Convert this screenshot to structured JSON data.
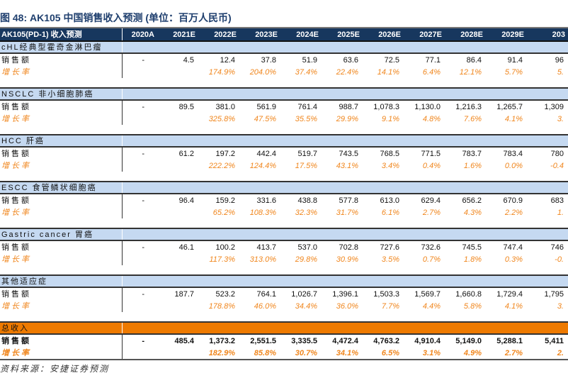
{
  "title": "图 48: AK105 中国销售收入预测 (单位：百万人民币)",
  "header": {
    "label": "AK105(PD-1) 收入预测",
    "years": [
      "2020A",
      "2021E",
      "2022E",
      "2023E",
      "2024E",
      "2025E",
      "2026E",
      "2027E",
      "2028E",
      "2029E",
      "203"
    ]
  },
  "sales_label": "销售额",
  "growth_label": "增长率",
  "sections": [
    {
      "name": "cHL经典型霍奇金淋巴瘤",
      "sales": [
        "-",
        "4.5",
        "12.4",
        "37.8",
        "51.9",
        "63.6",
        "72.5",
        "77.1",
        "86.4",
        "91.4",
        "96"
      ],
      "growth": [
        "",
        "",
        "174.9%",
        "204.0%",
        "37.4%",
        "22.4%",
        "14.1%",
        "6.4%",
        "12.1%",
        "5.7%",
        "5."
      ]
    },
    {
      "name": "NSCLC 非小细胞肺癌",
      "sales": [
        "-",
        "89.5",
        "381.0",
        "561.9",
        "761.4",
        "988.7",
        "1,078.3",
        "1,130.0",
        "1,216.3",
        "1,265.7",
        "1,309"
      ],
      "growth": [
        "",
        "",
        "325.8%",
        "47.5%",
        "35.5%",
        "29.9%",
        "9.1%",
        "4.8%",
        "7.6%",
        "4.1%",
        "3."
      ]
    },
    {
      "name": "HCC 肝癌",
      "sales": [
        "-",
        "61.2",
        "197.2",
        "442.4",
        "519.7",
        "743.5",
        "768.5",
        "771.5",
        "783.7",
        "783.4",
        "780"
      ],
      "growth": [
        "",
        "",
        "222.2%",
        "124.4%",
        "17.5%",
        "43.1%",
        "3.4%",
        "0.4%",
        "1.6%",
        "0.0%",
        "-0.4"
      ]
    },
    {
      "name": "ESCC 食管鳞状细胞癌",
      "sales": [
        "-",
        "96.4",
        "159.2",
        "331.6",
        "438.8",
        "577.8",
        "613.0",
        "629.4",
        "656.2",
        "670.9",
        "683"
      ],
      "growth": [
        "",
        "",
        "65.2%",
        "108.3%",
        "32.3%",
        "31.7%",
        "6.1%",
        "2.7%",
        "4.3%",
        "2.2%",
        "1."
      ]
    },
    {
      "name": "Gastric cancer 胃癌",
      "sales": [
        "-",
        "46.1",
        "100.2",
        "413.7",
        "537.0",
        "702.8",
        "727.6",
        "732.6",
        "745.5",
        "747.4",
        "746"
      ],
      "growth": [
        "",
        "",
        "117.3%",
        "313.0%",
        "29.8%",
        "30.9%",
        "3.5%",
        "0.7%",
        "1.8%",
        "0.3%",
        "-0."
      ]
    },
    {
      "name": "其他适应症",
      "sales": [
        "-",
        "187.7",
        "523.2",
        "764.1",
        "1,026.7",
        "1,396.1",
        "1,503.3",
        "1,569.7",
        "1,660.8",
        "1,729.4",
        "1,795"
      ],
      "growth": [
        "",
        "",
        "178.8%",
        "46.0%",
        "34.4%",
        "36.0%",
        "7.7%",
        "4.4%",
        "5.8%",
        "4.1%",
        "3."
      ]
    }
  ],
  "total": {
    "name": "总收入",
    "sales": [
      "-",
      "485.4",
      "1,373.2",
      "2,551.5",
      "3,335.5",
      "4,472.4",
      "4,763.2",
      "4,910.4",
      "5,149.0",
      "5,288.1",
      "5,411"
    ],
    "growth": [
      "",
      "",
      "182.9%",
      "85.8%",
      "30.7%",
      "34.1%",
      "6.5%",
      "3.1%",
      "4.9%",
      "2.7%",
      "2."
    ]
  },
  "source": "资料来源：安捷证券预测",
  "colors": {
    "header_bg": "#17375e",
    "section_bg": "#c5d9f1",
    "total_bg": "#ee7a00",
    "growth_text": "#f0861d",
    "title": "#1f3f6e"
  }
}
